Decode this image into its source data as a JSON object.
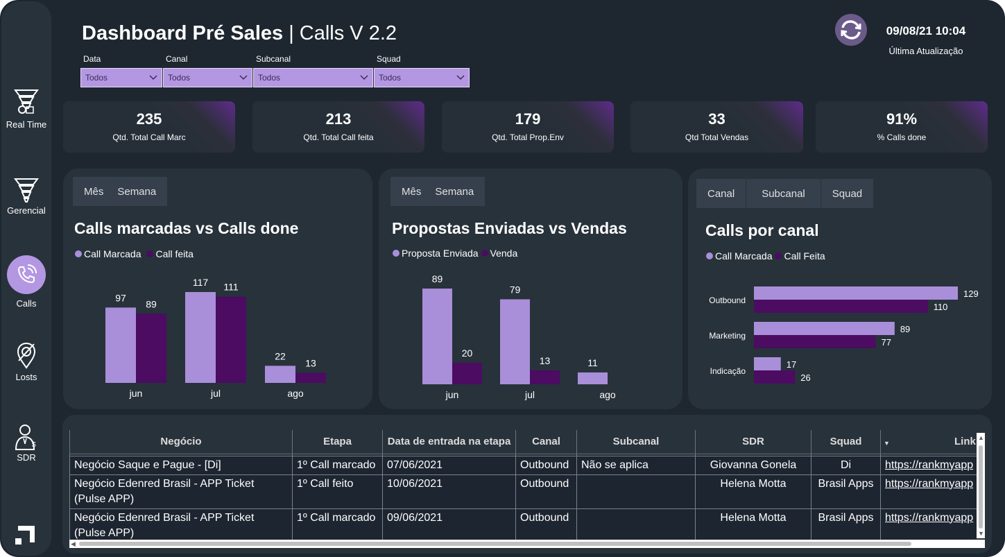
{
  "header": {
    "title_bold": "Dashboard Pré Sales",
    "title_rest": " | Calls V 2.2",
    "update_time": "09/08/21 10:04",
    "update_label": "Última Atualização"
  },
  "sidebar": {
    "items": [
      {
        "label": "Real Time",
        "icon": "funnel-clock-icon"
      },
      {
        "label": "Gerencial",
        "icon": "funnel-icon"
      },
      {
        "label": "Calls",
        "icon": "phone-ringing-icon"
      },
      {
        "label": "Losts",
        "icon": "location-off-icon"
      },
      {
        "label": "SDR",
        "icon": "salesperson-icon"
      }
    ]
  },
  "filters": [
    {
      "label": "Data",
      "value": "Todos"
    },
    {
      "label": "Canal",
      "value": "Todos"
    },
    {
      "label": "Subcanal",
      "value": "Todos"
    },
    {
      "label": "Squad",
      "value": "Todos"
    }
  ],
  "kpis": [
    {
      "value": "235",
      "label": "Qtd. Total Call Marc"
    },
    {
      "value": "213",
      "label": "Qtd. Total Call feita"
    },
    {
      "value": "179",
      "label": "Qtd. Total Prop.Env"
    },
    {
      "value": "33",
      "label": "Qtd Total Vendas"
    },
    {
      "value": "91%",
      "label": "% Calls done"
    }
  ],
  "colors": {
    "light": "#a98fd9",
    "dark": "#4b0c62",
    "accent": "#b497e3"
  },
  "panels": {
    "calls": {
      "tabs": [
        "Mês",
        "Semana"
      ],
      "title": "Calls marcadas vs Calls done",
      "legend": [
        "Call Marcada",
        "Call feita"
      ]
    },
    "propostas": {
      "tabs": [
        "Mês",
        "Semana"
      ],
      "title": "Propostas Enviadas vs Vendas",
      "legend": [
        "Proposta Enviada",
        "Venda"
      ]
    },
    "canal": {
      "tabs": [
        "Canal",
        "Subcanal",
        "Squad"
      ],
      "title": "Calls por canal",
      "legend": [
        "Call Marcada",
        "Call Feita"
      ]
    }
  },
  "chart_data": [
    {
      "type": "bar",
      "title": "Calls marcadas vs Calls done",
      "categories": [
        "jun",
        "jul",
        "ago"
      ],
      "series": [
        {
          "name": "Call Marcada",
          "values": [
            97,
            117,
            22
          ]
        },
        {
          "name": "Call feita",
          "values": [
            89,
            111,
            13
          ]
        }
      ],
      "ylim": [
        0,
        117
      ],
      "legend": "top-left",
      "grid": false
    },
    {
      "type": "bar",
      "title": "Propostas Enviadas vs Vendas",
      "categories": [
        "jun",
        "jul",
        "ago"
      ],
      "series": [
        {
          "name": "Proposta Enviada",
          "values": [
            89,
            79,
            11
          ]
        },
        {
          "name": "Venda",
          "values": [
            20,
            13,
            null
          ]
        }
      ],
      "ylim": [
        0,
        89
      ],
      "legend": "top-left",
      "grid": false
    },
    {
      "type": "bar",
      "orientation": "horizontal",
      "title": "Calls por canal",
      "categories": [
        "Outbound",
        "Marketing",
        "Indicação"
      ],
      "series": [
        {
          "name": "Call Marcada",
          "values": [
            129,
            89,
            17
          ]
        },
        {
          "name": "Call Feita",
          "values": [
            110,
            77,
            26
          ]
        }
      ],
      "xlim": [
        0,
        129
      ],
      "legend": "top-left",
      "grid": false
    }
  ],
  "table": {
    "columns": [
      "Negócio",
      "Etapa",
      "Data de entrada na etapa",
      "Canal",
      "Subcanal",
      "SDR",
      "Squad",
      "Link"
    ],
    "rows": [
      [
        "Negócio Saque e Pague - [Di]",
        "1º Call marcado",
        "07/06/2021",
        "Outbound",
        "Não se aplica",
        "Giovanna Gonela",
        "Di",
        "https://rankmyapp"
      ],
      [
        "Negócio Edenred Brasil - APP Ticket (Pulse APP)",
        "1º Call feito",
        "10/06/2021",
        "Outbound",
        "",
        "Helena Motta",
        "Brasil Apps",
        "https://rankmyapp"
      ],
      [
        "Negócio Edenred Brasil - APP Ticket (Pulse APP)",
        "1º Call marcado",
        "09/06/2021",
        "Outbound",
        "",
        "Helena Motta",
        "Brasil Apps",
        "https://rankmyapp"
      ]
    ]
  }
}
